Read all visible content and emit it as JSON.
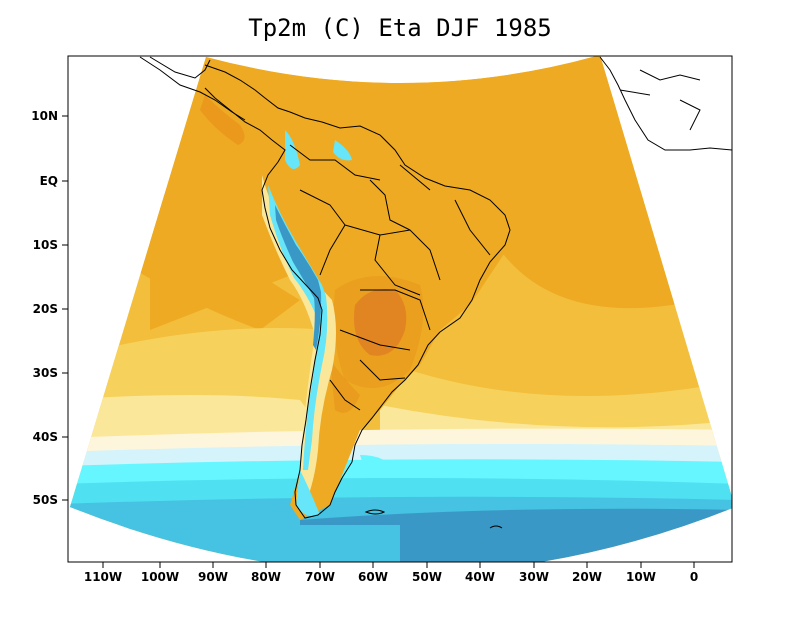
{
  "title": "Tp2m (C) Eta DJF 1985",
  "axes": {
    "y_ticks": [
      {
        "label": "10N",
        "lat": 10
      },
      {
        "label": "EQ",
        "lat": 0
      },
      {
        "label": "10S",
        "lat": -10
      },
      {
        "label": "20S",
        "lat": -20
      },
      {
        "label": "30S",
        "lat": -30
      },
      {
        "label": "40S",
        "lat": -40
      },
      {
        "label": "50S",
        "lat": -50
      }
    ],
    "x_ticks": [
      {
        "label": "110W",
        "lon": -110
      },
      {
        "label": "100W",
        "lon": -100
      },
      {
        "label": "90W",
        "lon": -90
      },
      {
        "label": "80W",
        "lon": -80
      },
      {
        "label": "70W",
        "lon": -70
      },
      {
        "label": "60W",
        "lon": -60
      },
      {
        "label": "50W",
        "lon": -50
      },
      {
        "label": "40W",
        "lon": -40
      },
      {
        "label": "30W",
        "lon": -30
      },
      {
        "label": "20W",
        "lon": -20
      },
      {
        "label": "10W",
        "lon": -10
      },
      {
        "label": "0",
        "lon": 0
      }
    ]
  },
  "colors": {
    "hot_dark": "#d9702a",
    "hot": "#e8951c",
    "warm_orange": "#eeaa22",
    "warm": "#f2be3c",
    "mild": "#f6d25c",
    "pale": "#fbe79a",
    "cream": "#fdf6dc",
    "very_light_blue": "#d4f3fb",
    "light_cyan": "#66f6ff",
    "cyan": "#4fe0f2",
    "mid_blue": "#46c2e2",
    "deep_blue": "#3a98c6"
  }
}
